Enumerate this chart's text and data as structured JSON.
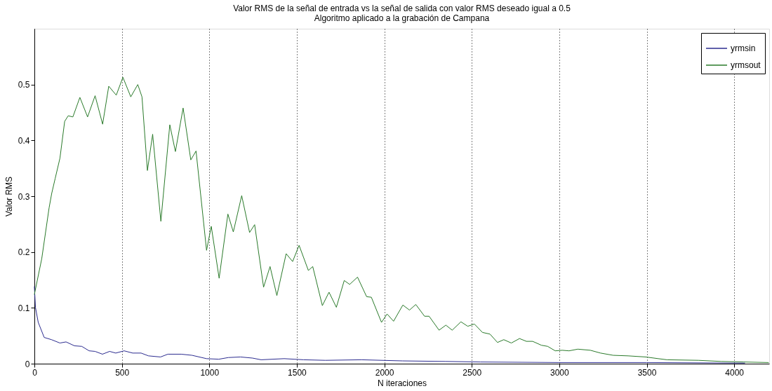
{
  "chart_data": {
    "type": "line",
    "title": "Valor RMS de la señal de entrada vs la señal de salida con valor RMS deseado igual a 0.5",
    "subtitle": "Algoritmo aplicado a la grabación de Campana",
    "xlabel": "N iteraciones",
    "ylabel": "Valor RMS",
    "xlim": [
      0,
      4200
    ],
    "ylim": [
      0,
      0.6
    ],
    "xticks": [
      0,
      500,
      1000,
      1500,
      2000,
      2500,
      3000,
      3500,
      4000
    ],
    "yticks": [
      0,
      0.1,
      0.2,
      0.3,
      0.4,
      0.5
    ],
    "grid": "x",
    "legend": "top right",
    "line_style": "solid",
    "series": [
      {
        "name": "yrmsin",
        "color": "#2b2b8f",
        "x": [
          0,
          6,
          22,
          56,
          98,
          146,
          181,
          229,
          271,
          313,
          347,
          389,
          430,
          465,
          513,
          562,
          610,
          652,
          721,
          763,
          839,
          901,
          984,
          1054,
          1109,
          1178,
          1247,
          1296,
          1428,
          1539,
          1663,
          1870,
          2104,
          2350,
          2550,
          3000,
          3500,
          4060
        ],
        "values": [
          0.138,
          0.101,
          0.074,
          0.047,
          0.043,
          0.037,
          0.039,
          0.032,
          0.031,
          0.023,
          0.022,
          0.017,
          0.022,
          0.019,
          0.023,
          0.019,
          0.019,
          0.014,
          0.012,
          0.017,
          0.017,
          0.015,
          0.009,
          0.008,
          0.011,
          0.012,
          0.01,
          0.007,
          0.009,
          0.007,
          0.006,
          0.007,
          0.005,
          0.004,
          0.003,
          0.002,
          0.002,
          0.001
        ]
      },
      {
        "name": "yrmsout",
        "color": "#2a7a2a",
        "x": [
          0,
          42,
          84,
          99,
          119,
          146,
          173,
          193,
          220,
          260,
          304,
          347,
          390,
          425,
          468,
          506,
          551,
          591,
          615,
          646,
          676,
          723,
          774,
          806,
          850,
          894,
          924,
          984,
          1011,
          1056,
          1106,
          1137,
          1185,
          1230,
          1259,
          1310,
          1347,
          1386,
          1439,
          1476,
          1513,
          1566,
          1591,
          1646,
          1684,
          1726,
          1771,
          1802,
          1847,
          1899,
          1926,
          1984,
          2016,
          2053,
          2106,
          2144,
          2180,
          2230,
          2256,
          2313,
          2352,
          2388,
          2438,
          2477,
          2515,
          2561,
          2604,
          2647,
          2683,
          2726,
          2773,
          2812,
          2848,
          2898,
          2934,
          2977,
          3017,
          3056,
          3106,
          3178,
          3236,
          3308,
          3394,
          3494,
          3566,
          3616,
          3796,
          3926,
          4055,
          4196
        ],
        "values": [
          0.124,
          0.188,
          0.279,
          0.305,
          0.332,
          0.368,
          0.434,
          0.444,
          0.442,
          0.477,
          0.442,
          0.48,
          0.429,
          0.497,
          0.481,
          0.513,
          0.478,
          0.5,
          0.478,
          0.346,
          0.411,
          0.255,
          0.428,
          0.38,
          0.458,
          0.365,
          0.381,
          0.203,
          0.246,
          0.153,
          0.268,
          0.236,
          0.301,
          0.235,
          0.249,
          0.137,
          0.174,
          0.122,
          0.197,
          0.183,
          0.212,
          0.167,
          0.174,
          0.104,
          0.128,
          0.101,
          0.149,
          0.142,
          0.155,
          0.12,
          0.119,
          0.074,
          0.089,
          0.076,
          0.105,
          0.096,
          0.106,
          0.085,
          0.085,
          0.06,
          0.069,
          0.06,
          0.075,
          0.067,
          0.071,
          0.056,
          0.053,
          0.038,
          0.043,
          0.037,
          0.045,
          0.04,
          0.04,
          0.033,
          0.031,
          0.023,
          0.024,
          0.023,
          0.026,
          0.024,
          0.019,
          0.015,
          0.014,
          0.012,
          0.009,
          0.007,
          0.006,
          0.004,
          0.003,
          0.002
        ]
      }
    ]
  }
}
